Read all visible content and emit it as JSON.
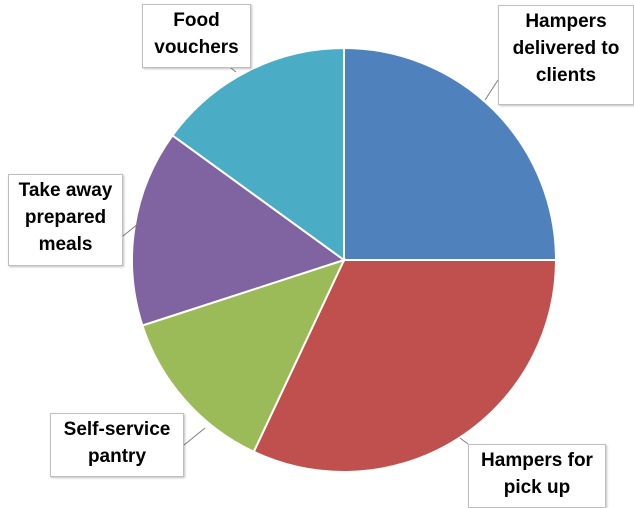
{
  "chart_data": {
    "type": "pie",
    "title": "",
    "categories": [
      "Hampers delivered to clients",
      "Hampers for pick up",
      "Self-service pantry",
      "Take away prepared meals",
      "Food vouchers"
    ],
    "values": [
      25,
      32,
      13,
      15,
      15
    ],
    "colors": [
      "#4F81BD",
      "#C0504D",
      "#9BBB59",
      "#8064A2",
      "#4BACC6"
    ],
    "labels": {
      "hampers_delivered": "Hampers\ndelivered to\nclients",
      "hampers_pickup": "Hampers for\npick up",
      "self_service": "Self-service\npantry",
      "take_away": "Take away\nprepared\nmeals",
      "food_vouchers": "Food\nvouchers"
    },
    "legend": "none"
  }
}
